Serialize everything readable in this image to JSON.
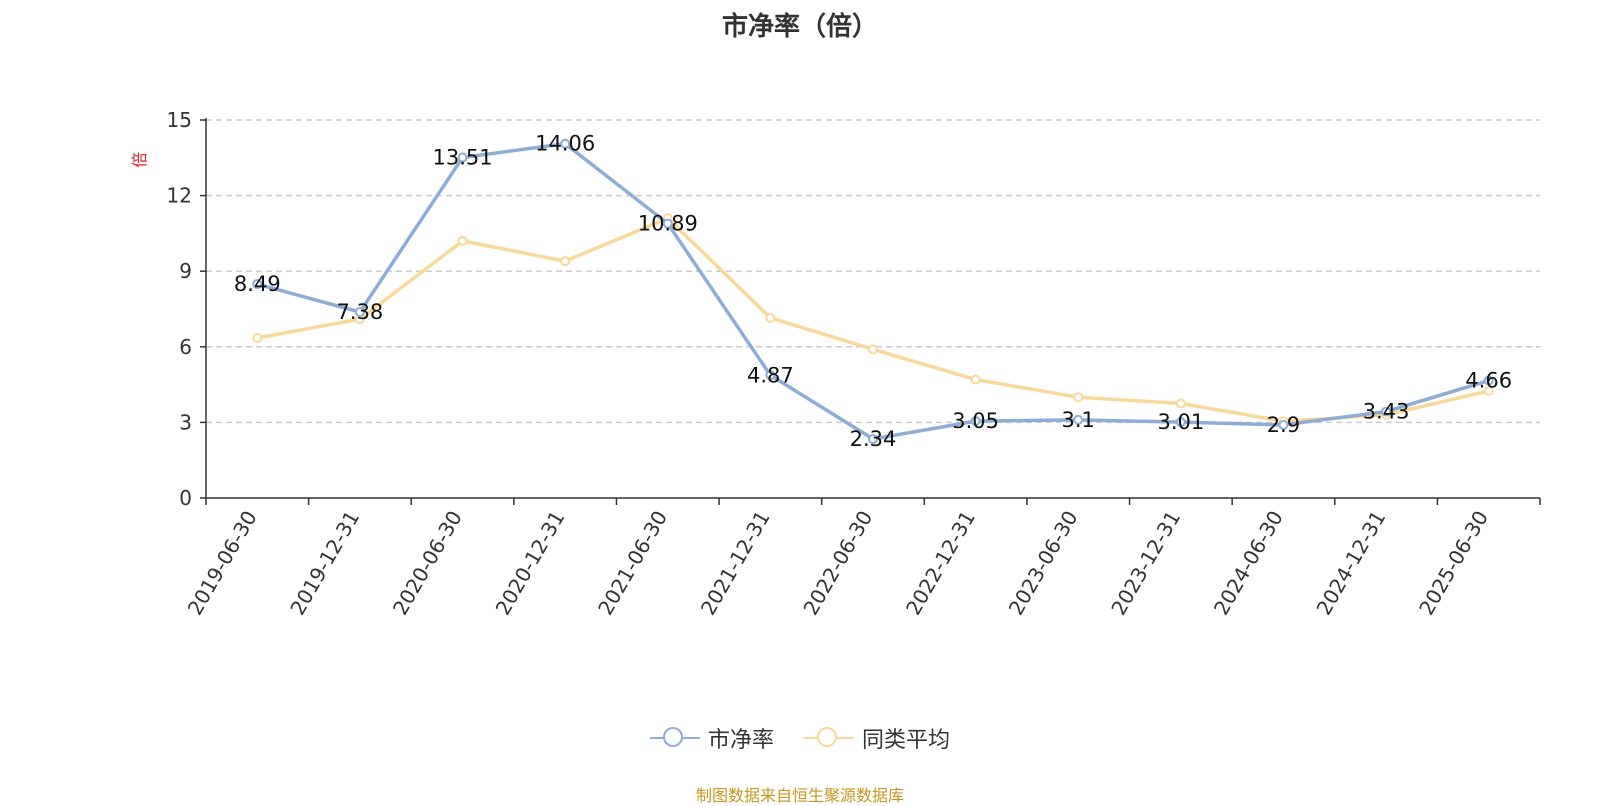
{
  "chart_data": {
    "type": "line",
    "title": "市净率（倍）",
    "ylabel": "倍",
    "ylim": [
      0,
      15
    ],
    "yticks": [
      0,
      3,
      6,
      9,
      12,
      15
    ],
    "grid": true,
    "legend_position": "bottom",
    "categories": [
      "2019-06-30",
      "2019-12-31",
      "2020-06-30",
      "2020-12-31",
      "2021-06-30",
      "2021-12-31",
      "2022-06-30",
      "2022-12-31",
      "2023-06-30",
      "2023-12-31",
      "2024-06-30",
      "2024-12-31",
      "2025-06-30"
    ],
    "series": [
      {
        "name": "市净率",
        "color": "#8eadd6",
        "values": [
          8.49,
          7.38,
          13.51,
          14.06,
          10.89,
          4.87,
          2.34,
          3.05,
          3.1,
          3.01,
          2.9,
          3.43,
          4.66
        ],
        "labels": [
          "8.49",
          "7.38",
          "13.51",
          "14.06",
          "10.89",
          "4.87",
          "2.34",
          "3.05",
          "3.1",
          "3.01",
          "2.9",
          "3.43",
          "4.66"
        ]
      },
      {
        "name": "同类平均",
        "color": "#f9d99a",
        "values": [
          6.35,
          7.1,
          10.2,
          9.4,
          11.1,
          7.15,
          5.9,
          4.7,
          4.0,
          3.75,
          3.05,
          3.3,
          4.25
        ]
      }
    ]
  },
  "source_note": "制图数据来自恒生聚源数据库"
}
